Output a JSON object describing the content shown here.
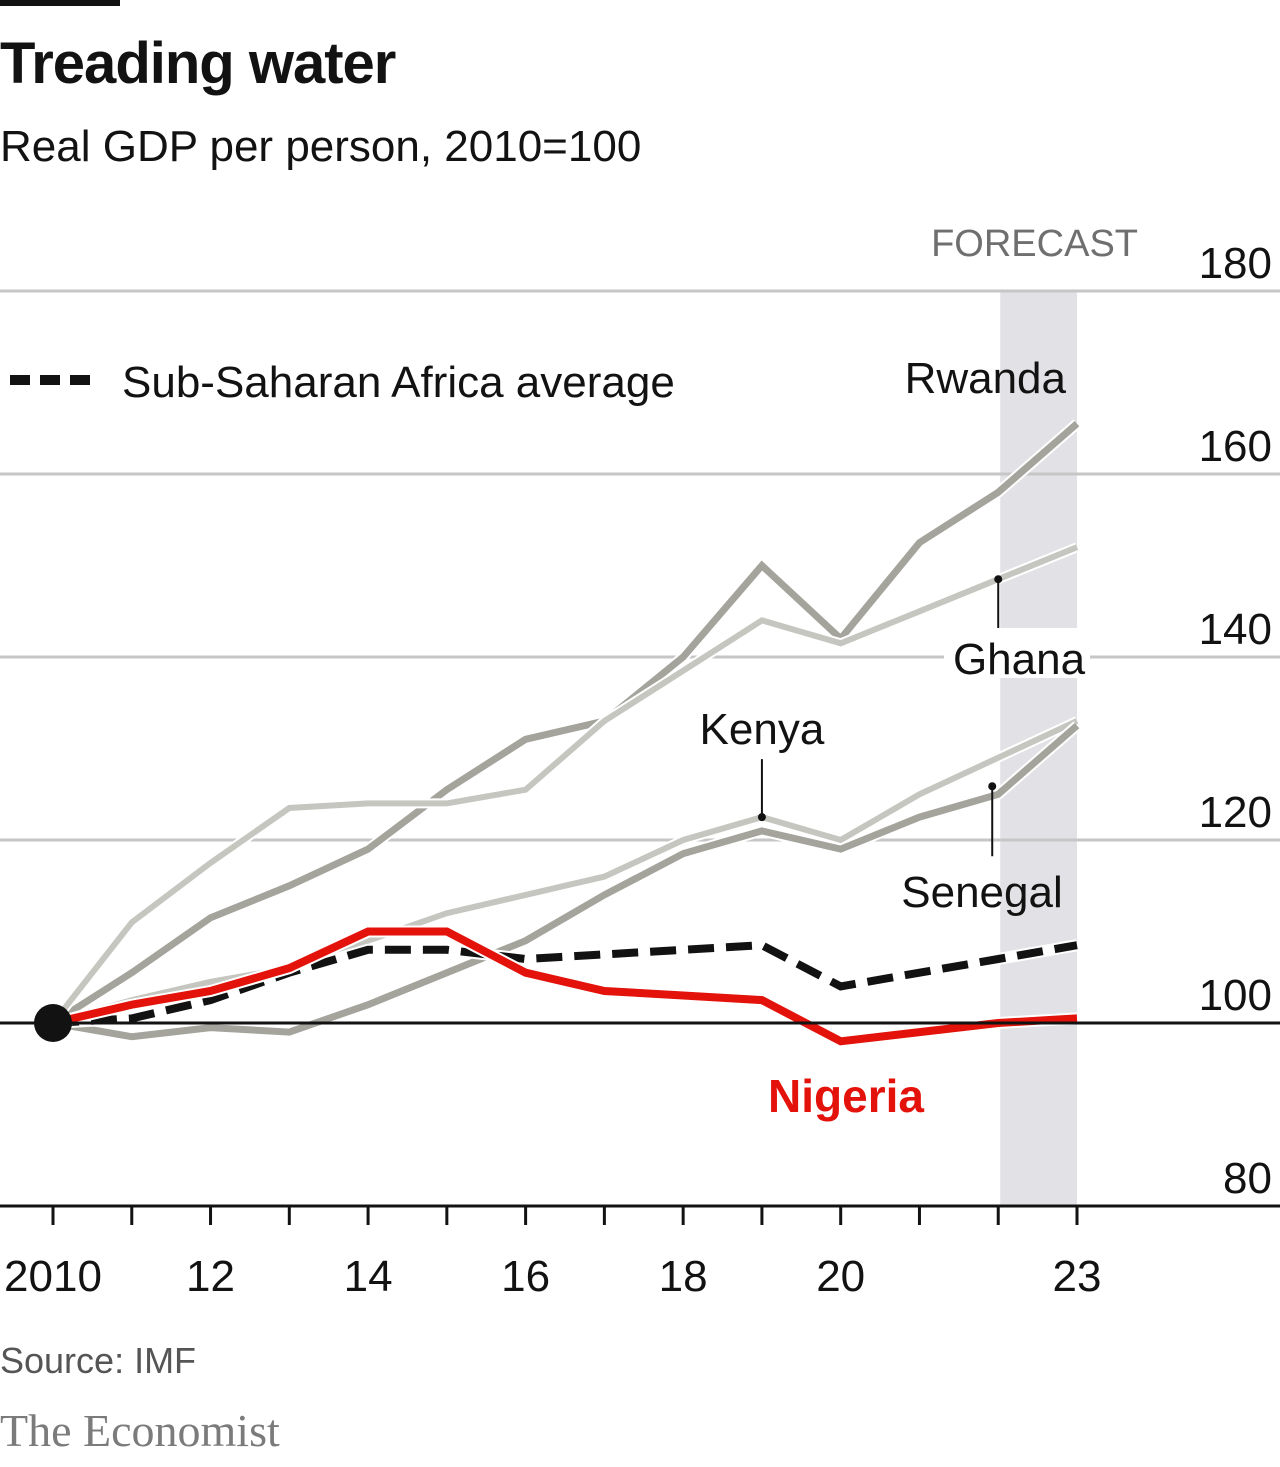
{
  "header": {
    "title": "Treading water",
    "subtitle": "Real GDP per person, 2010=100"
  },
  "footer": {
    "source": "Source: IMF",
    "brand": "The Economist"
  },
  "chart_data": {
    "type": "line",
    "title": "Treading water",
    "subtitle": "Real GDP per person, 2010=100",
    "xlabel": "",
    "ylabel": "",
    "x": [
      2010,
      2011,
      2012,
      2013,
      2014,
      2015,
      2016,
      2017,
      2018,
      2019,
      2020,
      2021,
      2022,
      2023
    ],
    "x_tick_values": [
      2010,
      2011,
      2012,
      2013,
      2014,
      2015,
      2016,
      2017,
      2018,
      2019,
      2020,
      2021,
      2022,
      2023
    ],
    "x_tick_labels": [
      {
        "year": 2010,
        "label": "2010"
      },
      {
        "year": 2012,
        "label": "12"
      },
      {
        "year": 2014,
        "label": "14"
      },
      {
        "year": 2016,
        "label": "16"
      },
      {
        "year": 2018,
        "label": "18"
      },
      {
        "year": 2020,
        "label": "20"
      },
      {
        "year": 2023,
        "label": "23"
      }
    ],
    "xlim": [
      2010,
      2023
    ],
    "ylim": [
      80,
      180
    ],
    "y_ticks": [
      80,
      100,
      120,
      140,
      160,
      180
    ],
    "y_baseline": 100,
    "grid": true,
    "forecast": {
      "label": "FORECAST",
      "start": 2022,
      "end": 2023
    },
    "legend": {
      "label": "Sub-Saharan Africa average",
      "position": "top-left"
    },
    "series": [
      {
        "name": "Rwanda",
        "color": "#a4a49c",
        "style": "solid",
        "values": [
          100,
          105.5,
          111.5,
          115,
          119,
          125.5,
          131,
          133,
          140,
          150,
          142,
          152.5,
          158,
          165.5
        ]
      },
      {
        "name": "Ghana",
        "color": "#c6c6c0",
        "style": "solid",
        "values": [
          100,
          111,
          117.5,
          123.5,
          124,
          124,
          125.5,
          133,
          138.5,
          144,
          141.5,
          145,
          148.5,
          152
        ]
      },
      {
        "name": "Kenya",
        "color": "#c6c6c0",
        "style": "solid",
        "values": [
          100,
          102.5,
          104.5,
          106,
          109,
          112,
          114,
          116,
          120,
          122.5,
          120,
          125,
          129,
          133
        ]
      },
      {
        "name": "Senegal",
        "color": "#a4a49c",
        "style": "solid",
        "values": [
          100,
          98.5,
          99.5,
          99,
          102,
          105.5,
          109,
          114,
          118.5,
          121,
          119,
          122.5,
          125,
          132.5
        ]
      },
      {
        "name": "Sub-Saharan Africa average",
        "color": "#121212",
        "style": "dashed",
        "values": [
          100,
          100.5,
          102.5,
          105.5,
          108,
          108,
          107,
          107.5,
          108,
          108.5,
          104,
          105.5,
          107,
          108.5
        ]
      },
      {
        "name": "Nigeria",
        "color": "#e3120b",
        "style": "solid",
        "values": [
          100,
          102,
          103.5,
          106,
          110,
          110,
          105.5,
          103.5,
          103,
          102.5,
          98,
          99,
          100,
          100.5
        ]
      }
    ],
    "annotations": [
      {
        "series": "Rwanda",
        "text": "Rwanda"
      },
      {
        "series": "Ghana",
        "text": "Ghana"
      },
      {
        "series": "Kenya",
        "text": "Kenya"
      },
      {
        "series": "Senegal",
        "text": "Senegal"
      },
      {
        "series": "Nigeria",
        "text": "Nigeria"
      }
    ]
  }
}
